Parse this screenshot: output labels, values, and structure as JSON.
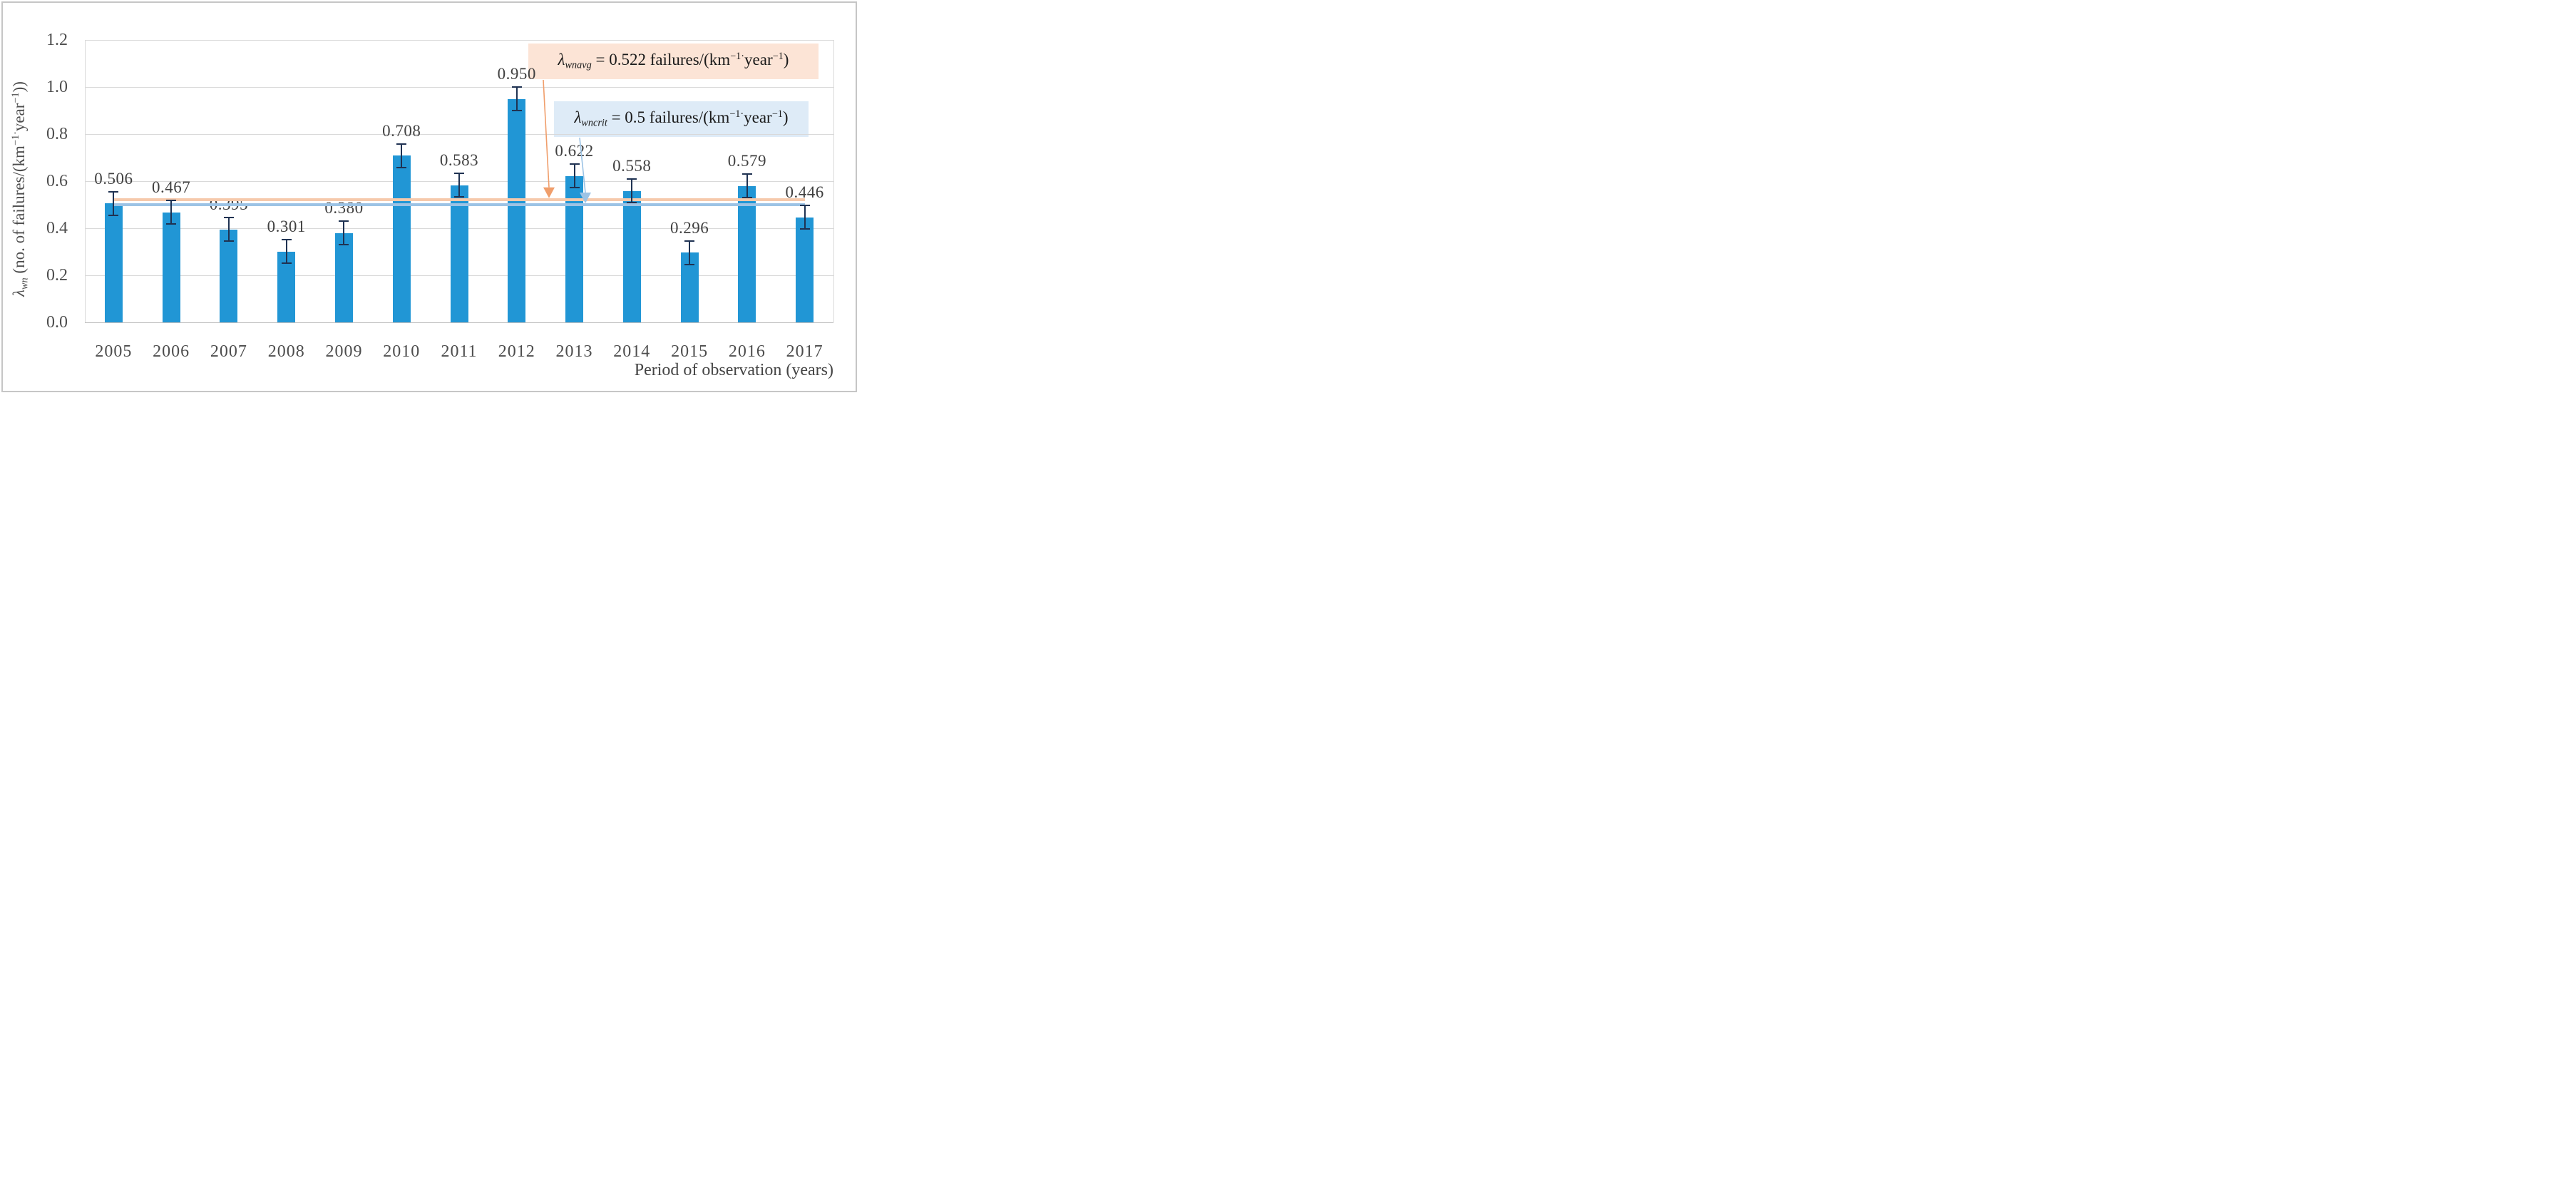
{
  "chart_data": {
    "type": "bar",
    "categories": [
      "2005",
      "2006",
      "2007",
      "2008",
      "2009",
      "2010",
      "2011",
      "2012",
      "2013",
      "2014",
      "2015",
      "2016",
      "2017"
    ],
    "values": [
      0.506,
      0.467,
      0.395,
      0.301,
      0.38,
      0.708,
      0.583,
      0.95,
      0.622,
      0.558,
      0.296,
      0.579,
      0.446
    ],
    "bar_labels": [
      "0.506",
      "0.467",
      "0.395",
      "0.301",
      "0.380",
      "0.708",
      "0.583",
      "0.950",
      "0.622",
      "0.558",
      "0.296",
      "0.579",
      "0.446"
    ],
    "error_bar": 0.05,
    "xlabel": "Period of observation (years)",
    "ylabel": "λwn (no. of failures/(km−1·year−1))",
    "ylim": [
      0,
      1.2
    ],
    "yticks": [
      "0.0",
      "0.2",
      "0.4",
      "0.6",
      "0.8",
      "1.0",
      "1.2"
    ],
    "grid": true,
    "legend": false,
    "bar_color": "#2196D5",
    "reference_lines": [
      {
        "id": "wnavg",
        "value": 0.522,
        "color": "#F6C9AB",
        "label": "λwnavg = 0.522 failures/(km−1·year−1)"
      },
      {
        "id": "wncrit",
        "value": 0.5,
        "color": "#9CC3E5",
        "label": "λwncrit = 0.5 failures/(km−1·year−1)"
      }
    ]
  },
  "y_axis_title": {
    "lambda": "λ",
    "sub": "wn",
    "pre": " (no. of failures/(km",
    "sup1": "−1·",
    "unit": "year",
    "sup2": "−1",
    "close": "))"
  },
  "x_axis_title": "Period of observation (years)",
  "annotations": {
    "avg": {
      "lambda": "λ",
      "sub": "wnavg",
      "eq": " = 0.522 failures/(km",
      "sup1": "−1·",
      "unit": "year",
      "sup2": "−1",
      "close": ")"
    },
    "crit": {
      "lambda": "λ",
      "sub": "wncrit",
      "eq": " = 0.5 failures/(km",
      "sup1": "−1·",
      "unit": "year",
      "sup2": "−1",
      "close": ")"
    }
  },
  "colors": {
    "bar": "#2196D5",
    "avg_line": "#F6C9AB",
    "crit_line": "#9CC3E5",
    "avg_box_bg": "#FCE4D6",
    "crit_box_bg": "#DEEBF7",
    "avg_arrow": "#F09E6B",
    "crit_arrow": "#9CC3E5",
    "gridline": "#D9D9D9",
    "axis_line": "#BFBFBF",
    "error_bar": "#1F3252",
    "tick_text": "#4D4D4D",
    "label_text": "#404040"
  }
}
